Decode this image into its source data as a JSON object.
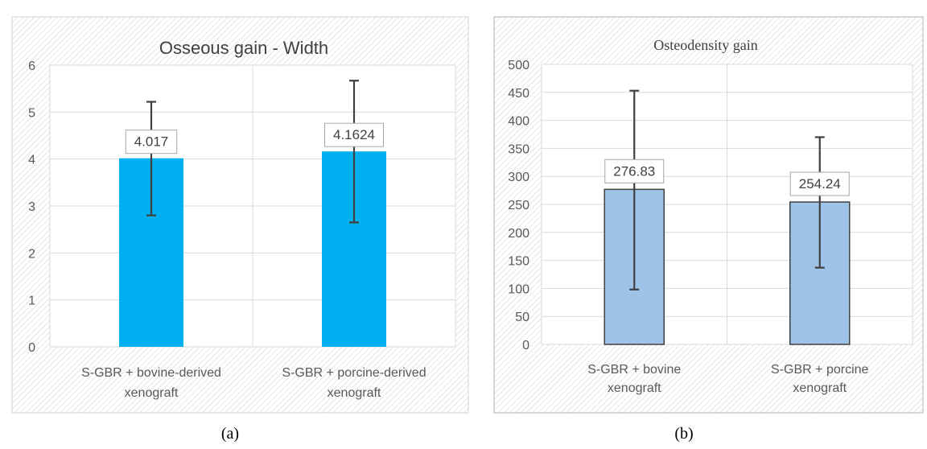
{
  "chart_data": [
    {
      "type": "bar",
      "title": "Osseous gain - Width",
      "categories": [
        "S-GBR + bovine-derived xenograft",
        "S-GBR + porcine-derived xenograft"
      ],
      "category_lines": [
        [
          "S-GBR + bovine-derived",
          "xenograft"
        ],
        [
          "S-GBR + porcine-derived",
          "xenograft"
        ]
      ],
      "values": [
        4.017,
        4.1624
      ],
      "value_labels": [
        "4.017",
        "4.1624"
      ],
      "error_low": [
        2.8,
        2.65
      ],
      "error_high": [
        5.22,
        5.67
      ],
      "ylim": [
        0,
        6
      ],
      "yticks": [
        0,
        1,
        2,
        3,
        4,
        5,
        6
      ],
      "grid": true,
      "xlabel": "",
      "ylabel": "",
      "bar_color": "#00b0f0",
      "subfigure_label": "(a)"
    },
    {
      "type": "bar",
      "title": "Osteodensity gain",
      "categories": [
        "S-GBR + bovine xenograft",
        "S-GBR + porcine xenograft"
      ],
      "category_lines": [
        [
          "S-GBR + bovine",
          "xenograft"
        ],
        [
          "S-GBR + porcine",
          "xenograft"
        ]
      ],
      "values": [
        276.83,
        254.24
      ],
      "value_labels": [
        "276.83",
        "254.24"
      ],
      "error_low": [
        98,
        137
      ],
      "error_high": [
        453,
        370
      ],
      "ylim": [
        0,
        500
      ],
      "yticks": [
        0,
        50,
        100,
        150,
        200,
        250,
        300,
        350,
        400,
        450,
        500
      ],
      "grid": true,
      "xlabel": "",
      "ylabel": "",
      "bar_color": "#9dc3e6",
      "subfigure_label": "(b)"
    }
  ]
}
